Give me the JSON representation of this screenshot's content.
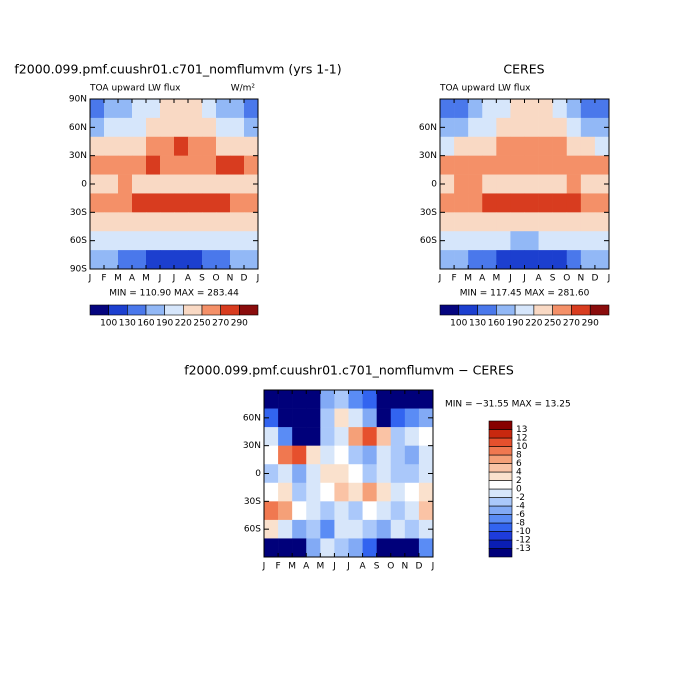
{
  "chart_data": [
    {
      "type": "heatmap",
      "title": "f2000.099.pmf.cuushr01.c701_nomflumvm (yrs 1-1)",
      "left_label": "TOA upward LW flux",
      "right_label": "W/m²",
      "stats": "MIN = 110.90 MAX = 283.44",
      "x_labels": [
        "J",
        "F",
        "M",
        "A",
        "M",
        "J",
        "J",
        "A",
        "S",
        "O",
        "N",
        "D",
        "J"
      ],
      "y": [
        80,
        60,
        40,
        20,
        0,
        -20,
        -40,
        -60,
        -80
      ],
      "ylim": [
        -90,
        90
      ],
      "yticks": [
        {
          "value": 90,
          "label": "90N"
        },
        {
          "value": 60,
          "label": "60N"
        },
        {
          "value": 30,
          "label": "30N"
        },
        {
          "value": 0,
          "label": "0"
        },
        {
          "value": -30,
          "label": "30S"
        },
        {
          "value": -60,
          "label": "60S"
        },
        {
          "value": -90,
          "label": "90S"
        }
      ],
      "z": [
        [
          150,
          160,
          175,
          195,
          215,
          230,
          235,
          225,
          200,
          175,
          160,
          150
        ],
        [
          185,
          190,
          200,
          215,
          230,
          240,
          245,
          240,
          225,
          205,
          190,
          185
        ],
        [
          220,
          225,
          230,
          240,
          255,
          265,
          270,
          265,
          255,
          240,
          225,
          220
        ],
        [
          265,
          260,
          260,
          265,
          270,
          265,
          262,
          262,
          268,
          272,
          272,
          268
        ],
        [
          245,
          248,
          250,
          245,
          240,
          235,
          238,
          240,
          245,
          248,
          245,
          245
        ],
        [
          265,
          268,
          268,
          272,
          275,
          280,
          282,
          280,
          278,
          272,
          265,
          264
        ],
        [
          245,
          242,
          238,
          235,
          232,
          230,
          230,
          232,
          235,
          240,
          245,
          247
        ],
        [
          215,
          212,
          205,
          198,
          192,
          190,
          190,
          192,
          198,
          205,
          212,
          215
        ],
        [
          175,
          165,
          150,
          135,
          125,
          120,
          118,
          120,
          130,
          150,
          168,
          178
        ]
      ],
      "colorbar": {
        "levels": [
          100,
          130,
          160,
          190,
          220,
          250,
          270,
          290
        ],
        "colors": [
          "#05057f",
          "#1c3fcf",
          "#4a78eb",
          "#92b8f6",
          "#d6e6fb",
          "#f9d9c4",
          "#f49068",
          "#d83c1f",
          "#8a0c0c"
        ]
      }
    },
    {
      "type": "heatmap",
      "title": "CERES",
      "left_label": "TOA upward LW flux",
      "stats": "MIN = 117.45 MAX = 281.60",
      "x_labels": [
        "J",
        "F",
        "M",
        "A",
        "M",
        "J",
        "J",
        "A",
        "S",
        "O",
        "N",
        "D",
        "J"
      ],
      "y": [
        80,
        60,
        40,
        20,
        0,
        -20,
        -40,
        -60,
        -80
      ],
      "ylim": [
        -90,
        90
      ],
      "yticks": [
        {
          "value": 60,
          "label": "60N"
        },
        {
          "value": 30,
          "label": "30N"
        },
        {
          "value": 0,
          "label": "0"
        },
        {
          "value": -30,
          "label": "30S"
        },
        {
          "value": -60,
          "label": "60S"
        }
      ],
      "z": [
        [
          140,
          150,
          170,
          190,
          212,
          228,
          232,
          222,
          198,
          170,
          152,
          142
        ],
        [
          180,
          185,
          198,
          212,
          228,
          238,
          242,
          238,
          222,
          202,
          188,
          182
        ],
        [
          215,
          220,
          228,
          238,
          252,
          262,
          268,
          262,
          252,
          238,
          222,
          216
        ],
        [
          262,
          258,
          258,
          262,
          268,
          266,
          262,
          262,
          265,
          268,
          268,
          264
        ],
        [
          248,
          250,
          252,
          248,
          242,
          238,
          240,
          242,
          248,
          250,
          248,
          248
        ],
        [
          264,
          266,
          266,
          270,
          274,
          280,
          280,
          278,
          276,
          270,
          264,
          262
        ],
        [
          240,
          238,
          236,
          234,
          232,
          230,
          230,
          232,
          234,
          238,
          242,
          244
        ],
        [
          210,
          208,
          204,
          196,
          190,
          188,
          188,
          190,
          196,
          202,
          208,
          212
        ],
        [
          172,
          165,
          150,
          132,
          122,
          118,
          116,
          118,
          128,
          148,
          165,
          175
        ]
      ],
      "colorbar": {
        "levels": [
          100,
          130,
          160,
          190,
          220,
          250,
          270,
          290
        ],
        "colors": [
          "#05057f",
          "#1c3fcf",
          "#4a78eb",
          "#92b8f6",
          "#d6e6fb",
          "#f9d9c4",
          "#f49068",
          "#d83c1f",
          "#8a0c0c"
        ]
      }
    },
    {
      "type": "heatmap",
      "title": "f2000.099.pmf.cuushr01.c701_nomflumvm − CERES",
      "stats": "MIN = −31.55 MAX =  13.25",
      "x_labels": [
        "J",
        "F",
        "M",
        "A",
        "M",
        "J",
        "J",
        "A",
        "S",
        "O",
        "N",
        "D",
        "J"
      ],
      "y": [
        80,
        60,
        40,
        20,
        0,
        -20,
        -40,
        -60,
        -80
      ],
      "ylim": [
        -90,
        90
      ],
      "yticks": [
        {
          "value": 60,
          "label": "60N"
        },
        {
          "value": 30,
          "label": "30N"
        },
        {
          "value": 0,
          "label": "0"
        },
        {
          "value": -30,
          "label": "30S"
        },
        {
          "value": -60,
          "label": "60S"
        }
      ],
      "z": [
        [
          -20,
          -25,
          -28,
          -22,
          -5,
          -4,
          -8,
          -10,
          -25,
          -28,
          -22,
          -15
        ],
        [
          -10,
          -15,
          -25,
          -20,
          -4,
          2,
          -2,
          -6,
          -15,
          -10,
          -8,
          -6
        ],
        [
          -2,
          -8,
          -18,
          -15,
          -4,
          -2,
          6,
          10,
          4,
          -4,
          -2,
          0
        ],
        [
          0,
          8,
          10,
          3,
          -2,
          0,
          -4,
          -6,
          -2,
          -4,
          -6,
          -2
        ],
        [
          -4,
          -2,
          -6,
          -2,
          2,
          3,
          0,
          -3,
          -2,
          -4,
          -3,
          -2
        ],
        [
          0,
          2,
          -4,
          -2,
          0,
          5,
          2,
          6,
          2,
          -2,
          0,
          2
        ],
        [
          8,
          6,
          0,
          -2,
          -4,
          -2,
          -4,
          0,
          -2,
          -4,
          -2,
          4
        ],
        [
          2,
          -2,
          -6,
          -4,
          -8,
          -2,
          -2,
          -4,
          -6,
          -2,
          -4,
          -2
        ],
        [
          -20,
          -25,
          -22,
          -6,
          -2,
          -4,
          -6,
          -10,
          -22,
          -25,
          -20,
          -8
        ]
      ],
      "colorbar": {
        "levels": [
          -13,
          -12,
          -10,
          -8,
          -6,
          -4,
          -2,
          0,
          2,
          4,
          6,
          8,
          10,
          12,
          13
        ],
        "colors": [
          "#00007a",
          "#0a1eb4",
          "#1e3cdc",
          "#3264f0",
          "#5a8cf5",
          "#82aaf5",
          "#aac8fa",
          "#d7e6fa",
          "#ffffff",
          "#fae1cd",
          "#fac3a5",
          "#f5a078",
          "#f07850",
          "#e6502d",
          "#c8280f",
          "#870000"
        ]
      }
    }
  ]
}
